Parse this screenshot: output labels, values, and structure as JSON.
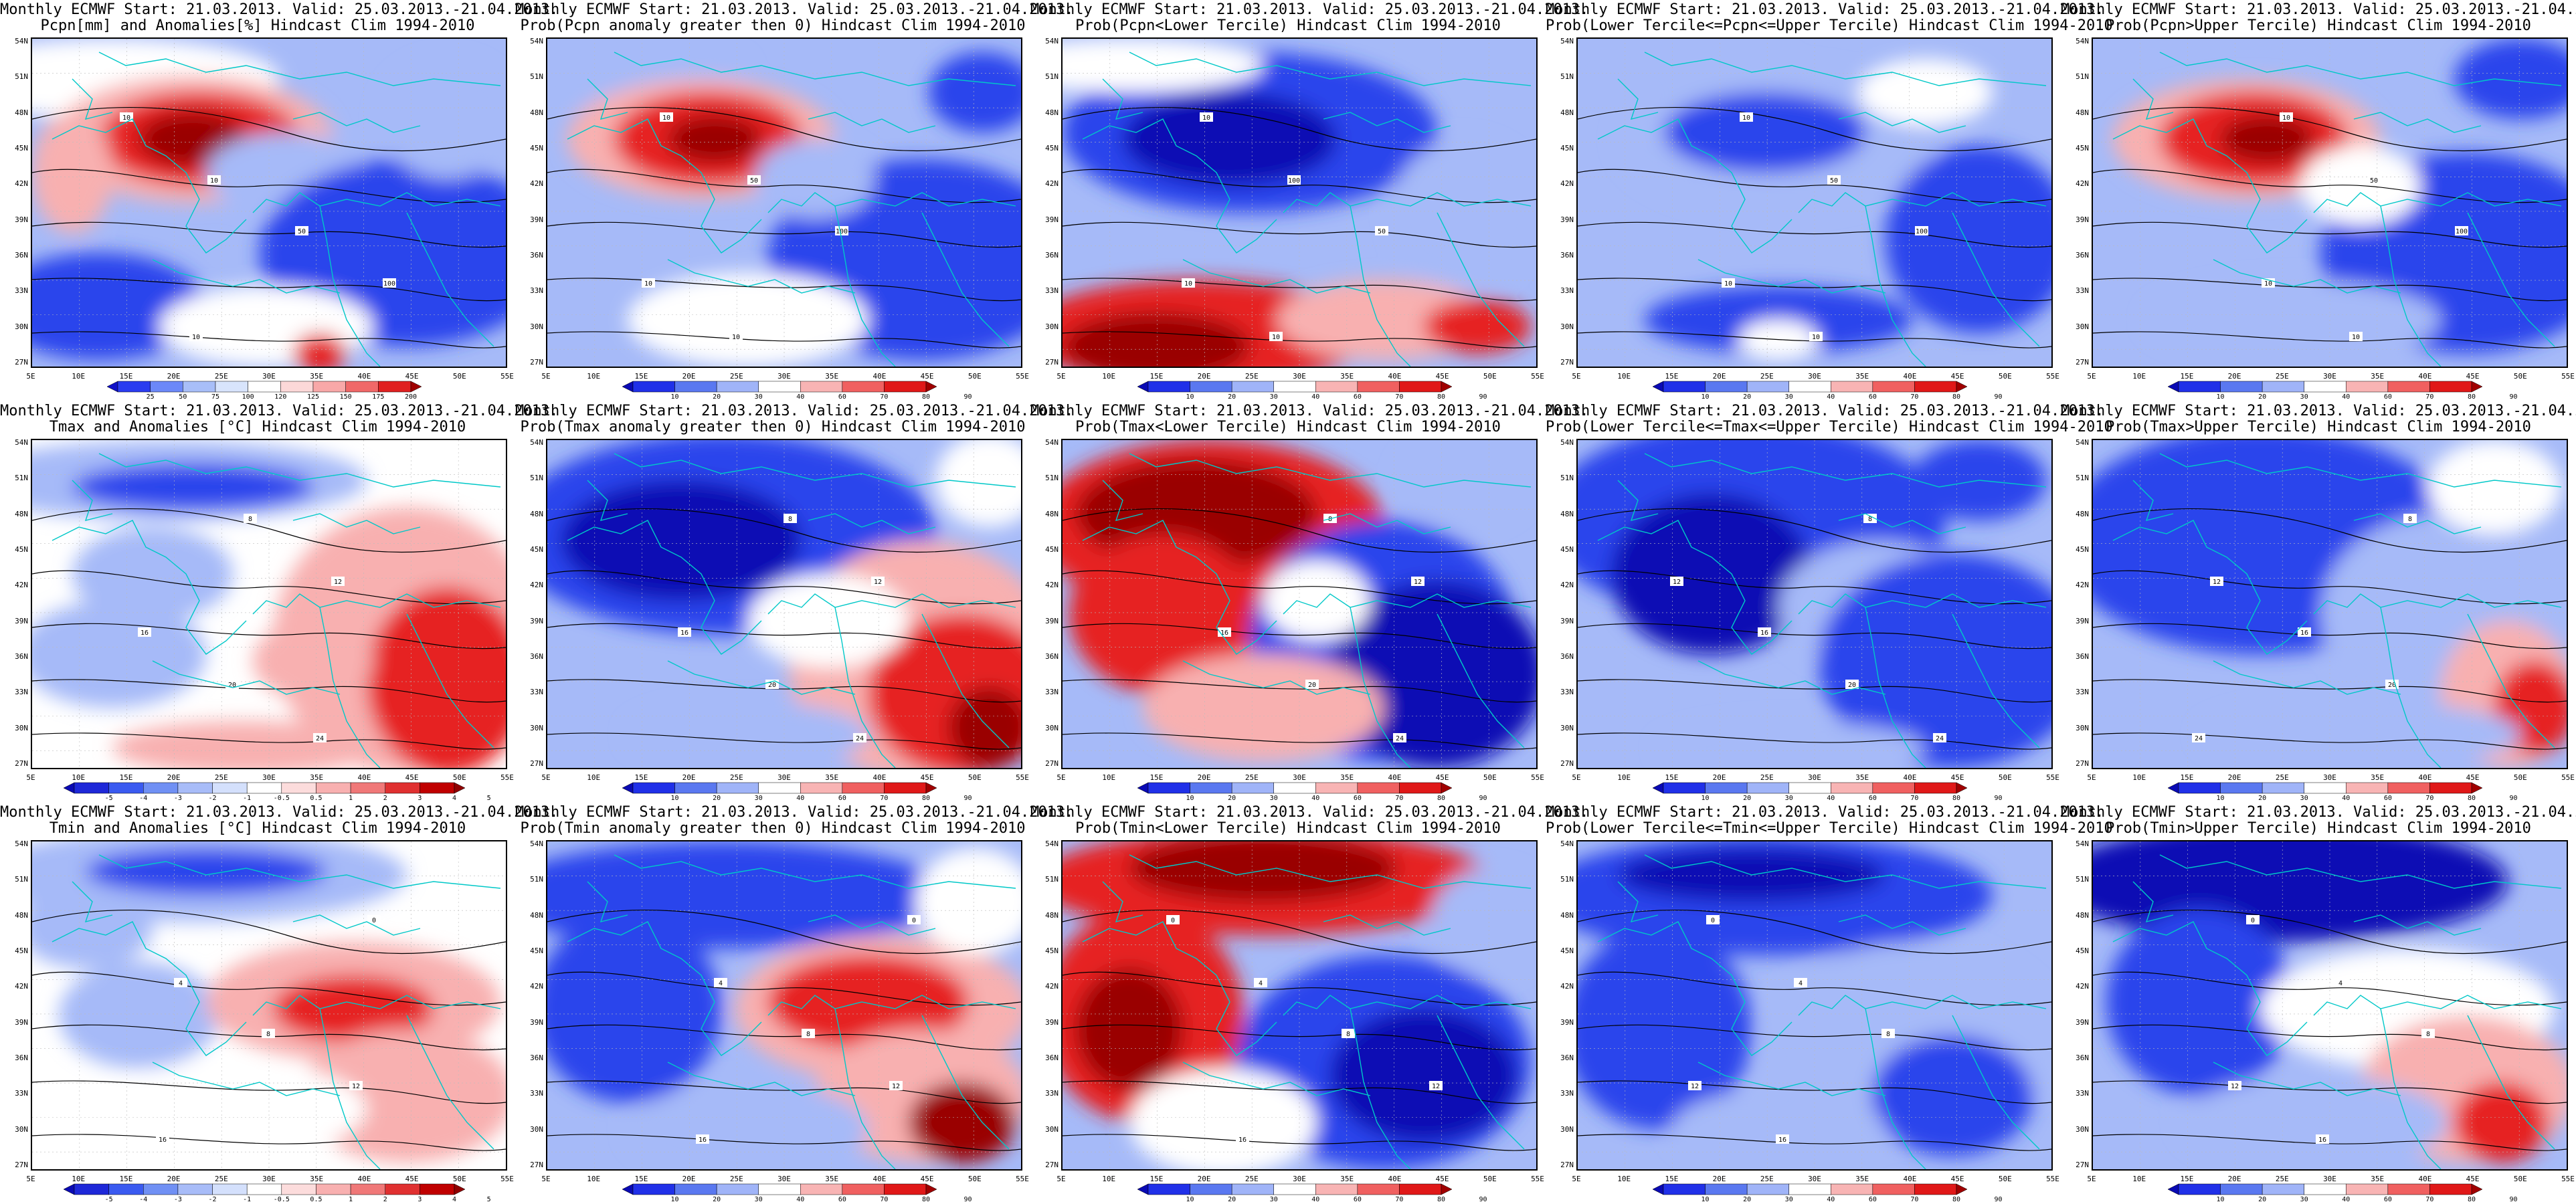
{
  "lat_labels": [
    "54N",
    "51N",
    "48N",
    "45N",
    "42N",
    "39N",
    "36N",
    "33N",
    "30N",
    "27N"
  ],
  "lon_labels": [
    "5E",
    "10E",
    "15E",
    "20E",
    "25E",
    "30E",
    "35E",
    "40E",
    "45E",
    "50E",
    "55E"
  ],
  "panels": [
    {
      "title1": "Monthly ECMWF Start: 21.03.2013. Valid: 25.03.2013.-21.04.2013.",
      "title2": "Pcpn[mm] and Anomalies[%] Hindcast Clim 1994-2010",
      "colorbar": "precip",
      "pattern": "p_anom",
      "contours": [
        "10",
        "10",
        "50",
        "100",
        "10"
      ]
    },
    {
      "title1": "Monthly ECMWF Start: 21.03.2013. Valid: 25.03.2013.-21.04.2013.",
      "title2": "Prob(Pcpn anomaly greater then 0) Hindcast Clim 1994-2010",
      "colorbar": "prob",
      "pattern": "p_gt0",
      "contours": [
        "10",
        "50",
        "100",
        "10",
        "10"
      ]
    },
    {
      "title1": "Monthly ECMWF Start: 21.03.2013. Valid: 25.03.2013.-21.04.2013.",
      "title2": "Prob(Pcpn<Lower Tercile) Hindcast Clim 1994-2010",
      "colorbar": "prob",
      "pattern": "p_low",
      "contours": [
        "10",
        "100",
        "50",
        "10",
        "10"
      ]
    },
    {
      "title1": "Monthly ECMWF Start: 21.03.2013. Valid: 25.03.2013.-21.04.2013.",
      "title2": "Prob(Lower Tercile<=Pcpn<=Upper Tercile) Hindcast Clim 1994-2010",
      "colorbar": "prob",
      "pattern": "p_mid",
      "contours": [
        "10",
        "50",
        "100",
        "10",
        "10"
      ]
    },
    {
      "title1": "Monthly ECMWF Start: 21.03.2013. Valid: 25.03.2013.-21.04.2013.",
      "title2": "Prob(Pcpn>Upper Tercile) Hindcast Clim 1994-2010",
      "colorbar": "prob",
      "pattern": "p_up",
      "contours": [
        "10",
        "50",
        "100",
        "10",
        "10"
      ]
    },
    {
      "title1": "Monthly ECMWF Start: 21.03.2013. Valid: 25.03.2013.-21.04.2013.",
      "title2": "Tmax and Anomalies [°C] Hindcast Clim 1994-2010",
      "colorbar": "temp",
      "pattern": "t_anom",
      "contours": [
        "8",
        "12",
        "16",
        "20",
        "24"
      ]
    },
    {
      "title1": "Monthly ECMWF Start: 21.03.2013. Valid: 25.03.2013.-21.04.2013.",
      "title2": "Prob(Tmax anomaly greater then 0) Hindcast Clim 1994-2010",
      "colorbar": "prob",
      "pattern": "t_gt0",
      "contours": [
        "8",
        "12",
        "16",
        "20",
        "24"
      ]
    },
    {
      "title1": "Monthly ECMWF Start: 21.03.2013. Valid: 25.03.2013.-21.04.2013.",
      "title2": "Prob(Tmax<Lower Tercile) Hindcast Clim 1994-2010",
      "colorbar": "prob",
      "pattern": "t_low",
      "contours": [
        "8",
        "12",
        "16",
        "20",
        "24"
      ]
    },
    {
      "title1": "Monthly ECMWF Start: 21.03.2013. Valid: 25.03.2013.-21.04.2013.",
      "title2": "Prob(Lower Tercile<=Tmax<=Upper Tercile) Hindcast Clim 1994-2010",
      "colorbar": "prob",
      "pattern": "t_mid",
      "contours": [
        "8",
        "12",
        "16",
        "20",
        "24"
      ]
    },
    {
      "title1": "Monthly ECMWF Start: 21.03.2013. Valid: 25.03.2013.-21.04.2013.",
      "title2": "Prob(Tmax>Upper Tercile) Hindcast Clim 1994-2010",
      "colorbar": "prob",
      "pattern": "t_up",
      "contours": [
        "8",
        "12",
        "16",
        "20",
        "24"
      ]
    },
    {
      "title1": "Monthly ECMWF Start: 21.03.2013. Valid: 25.03.2013.-21.04.2013.",
      "title2": "Tmin and Anomalies [°C] Hindcast Clim 1994-2010",
      "colorbar": "temp",
      "pattern": "n_anom",
      "contours": [
        "0",
        "4",
        "8",
        "12",
        "16"
      ]
    },
    {
      "title1": "Monthly ECMWF Start: 21.03.2013. Valid: 25.03.2013.-21.04.2013.",
      "title2": "Prob(Tmin anomaly greater then 0) Hindcast Clim 1994-2010",
      "colorbar": "prob",
      "pattern": "n_gt0",
      "contours": [
        "0",
        "4",
        "8",
        "12",
        "16"
      ]
    },
    {
      "title1": "Monthly ECMWF Start: 21.03.2013. Valid: 25.03.2013.-21.04.2013.",
      "title2": "Prob(Tmin<Lower Tercile) Hindcast Clim 1994-2010",
      "colorbar": "prob",
      "pattern": "n_low",
      "contours": [
        "0",
        "4",
        "8",
        "12",
        "16"
      ]
    },
    {
      "title1": "Monthly ECMWF Start: 21.03.2013. Valid: 25.03.2013.-21.04.2013.",
      "title2": "Prob(Lower Tercile<=Tmin<=Upper Tercile) Hindcast Clim 1994-2010",
      "colorbar": "prob",
      "pattern": "n_mid",
      "contours": [
        "0",
        "4",
        "8",
        "12",
        "16"
      ]
    },
    {
      "title1": "Monthly ECMWF Start: 21.03.2013. Valid: 25.03.2013.-21.04.2013.",
      "title2": "Prob(Tmin>Upper Tercile) Hindcast Clim 1994-2010",
      "colorbar": "prob",
      "pattern": "n_up",
      "contours": [
        "0",
        "4",
        "8",
        "12",
        "16"
      ]
    }
  ],
  "colorbars": {
    "precip": {
      "labels": [
        "25",
        "50",
        "75",
        "100",
        "120",
        "125",
        "150",
        "175",
        "200"
      ],
      "colors": [
        "#1010c8",
        "#2a3cf0",
        "#6c88f8",
        "#a8bef8",
        "#d8e4fc",
        "#ffffff",
        "#fcd8d8",
        "#f8a8a8",
        "#f06868",
        "#e02020",
        "#a00000"
      ]
    },
    "prob": {
      "labels": [
        "10",
        "20",
        "30",
        "40",
        "60",
        "70",
        "80",
        "90"
      ],
      "colors": [
        "#0a0ab4",
        "#2030e8",
        "#5a78f0",
        "#a0b4f8",
        "#ffffff",
        "#f8b4b4",
        "#f06060",
        "#e01818",
        "#a00000"
      ]
    },
    "temp": {
      "labels": [
        "-5",
        "-4",
        "-3",
        "-2",
        "-1",
        "-0.5",
        "0.5",
        "1",
        "2",
        "3",
        "4",
        "5"
      ],
      "colors": [
        "#0a0ab4",
        "#1e28d8",
        "#3a5af0",
        "#7090f4",
        "#a8bcf8",
        "#d4e0fc",
        "#ffffff",
        "#fcdcdc",
        "#f8b0b0",
        "#f07878",
        "#e03030",
        "#c00000",
        "#900000"
      ]
    }
  },
  "palette": {
    "deep_blue": "#0a0ab4",
    "blue": "#2a44ec",
    "light_blue": "#a6baf8",
    "white": "#ffffff",
    "light_red": "#f8b0b0",
    "red": "#e62020",
    "deep_red": "#9a0000",
    "coast": "#00c8c8",
    "contour": "#000000"
  }
}
